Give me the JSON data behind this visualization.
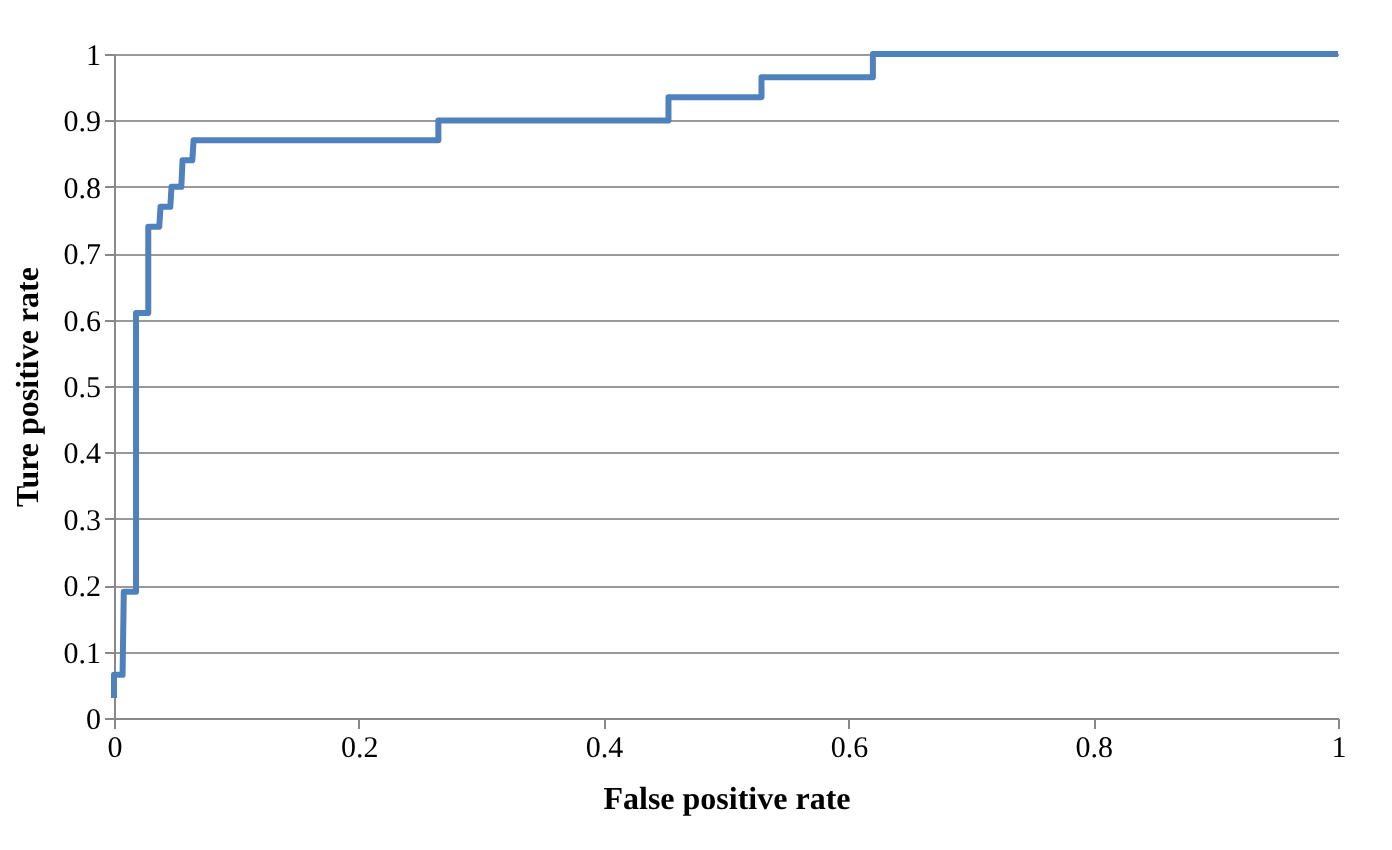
{
  "chart_data": {
    "type": "line",
    "xlabel": "False positive rate",
    "ylabel": "Ture positive rate",
    "x": [
      0,
      0,
      0.007,
      0.008,
      0.018,
      0.018,
      0.028,
      0.028,
      0.037,
      0.038,
      0.046,
      0.047,
      0.055,
      0.056,
      0.064,
      0.065,
      0.265,
      0.265,
      0.453,
      0.453,
      0.529,
      0.529,
      0.62,
      0.62,
      1
    ],
    "series": [
      {
        "color": "#4f81bd",
        "values": [
          0.03,
          0.065,
          0.065,
          0.19,
          0.19,
          0.61,
          0.61,
          0.74,
          0.74,
          0.77,
          0.77,
          0.8,
          0.8,
          0.84,
          0.84,
          0.87,
          0.87,
          0.9,
          0.9,
          0.935,
          0.935,
          0.965,
          0.965,
          1,
          1
        ]
      }
    ],
    "xlim": [
      0,
      1
    ],
    "xticks": [
      0,
      0.2,
      0.4,
      0.6,
      0.8,
      1
    ],
    "ylim": [
      0,
      1
    ],
    "yticks": [
      0,
      0.1,
      0.2,
      0.3,
      0.4,
      0.5,
      0.6,
      0.7,
      0.8,
      0.9,
      1
    ],
    "grid": "y",
    "marker": "none",
    "line_style": "solid"
  }
}
